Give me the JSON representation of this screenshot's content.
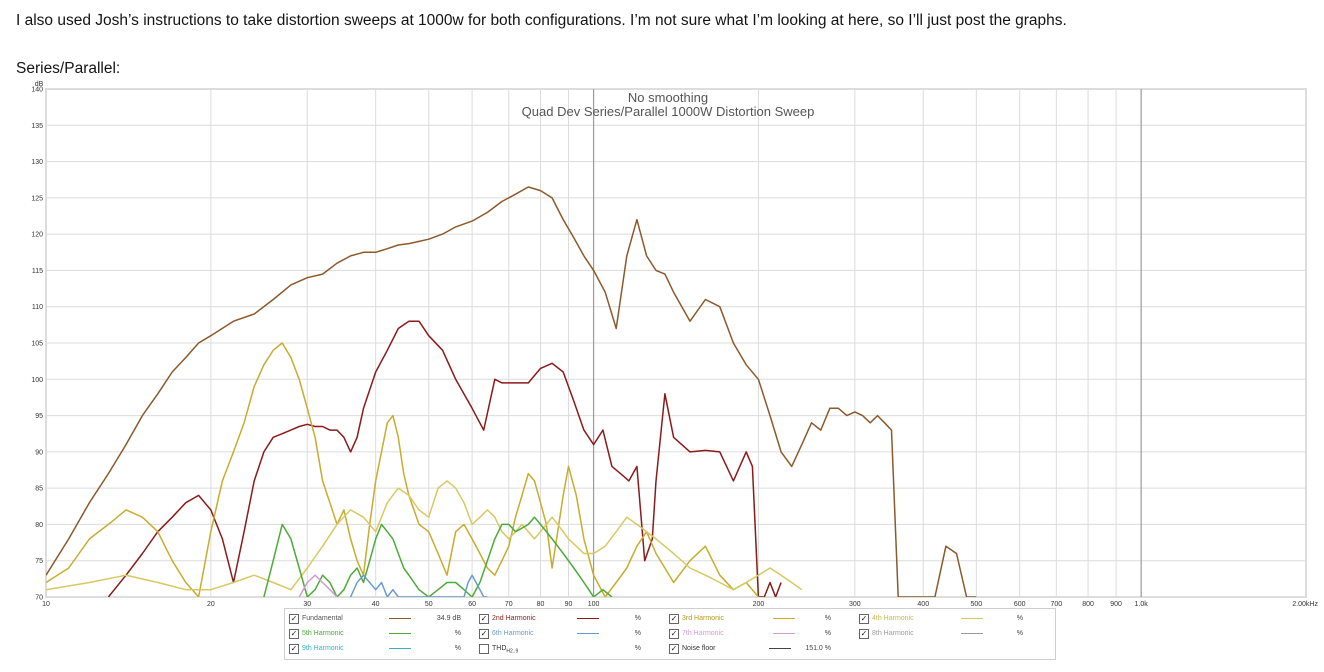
{
  "post": {
    "text": "I also used Josh’s instructions to take distortion sweeps at 1000w for both configurations. I’m not sure what I’m looking at here, so I’ll just post the graphs.",
    "section_label": "Series/Parallel:"
  },
  "chart_data": {
    "type": "line",
    "title": "Quad Dev Series/Parallel 1000W Distortion Sweep",
    "subtitle": "No smoothing",
    "ylabel": "dB",
    "xscale": "log",
    "xlim": [
      10,
      2000
    ],
    "ylim": [
      70,
      140
    ],
    "ytick_labels": [
      "70",
      "75",
      "80",
      "85",
      "90",
      "95",
      "100",
      "105",
      "110",
      "115",
      "120",
      "125",
      "130",
      "135",
      "140"
    ],
    "xtick_values": [
      10,
      20,
      30,
      40,
      50,
      60,
      70,
      80,
      90,
      100,
      200,
      300,
      400,
      500,
      600,
      700,
      800,
      900,
      1000,
      2000
    ],
    "xtick_labels": [
      "10",
      "20",
      "30",
      "40",
      "50",
      "60",
      "70",
      "80",
      "90",
      "100",
      "200",
      "300",
      "400",
      "500",
      "600",
      "700",
      "800",
      "900",
      "1.0k",
      "2.00kHz"
    ],
    "series": [
      {
        "name": "Fundamental",
        "color": "#8b5a2b",
        "x": [
          10,
          11,
          12,
          13,
          14,
          15,
          16,
          17,
          18,
          19,
          20,
          22,
          24,
          26,
          28,
          30,
          32,
          34,
          36,
          38,
          40,
          42,
          44,
          46,
          48,
          50,
          53,
          56,
          60,
          64,
          68,
          72,
          76,
          80,
          84,
          88,
          92,
          96,
          100,
          105,
          110,
          115,
          120,
          125,
          130,
          135,
          140,
          150,
          160,
          170,
          180,
          190,
          200,
          210,
          220,
          230,
          240,
          250,
          260,
          270,
          280,
          290,
          300,
          310,
          320,
          330,
          340,
          350,
          360,
          370,
          380,
          390,
          400,
          420,
          440,
          460,
          480,
          500
        ],
        "y": [
          73,
          78,
          83,
          87,
          91,
          95,
          98,
          101,
          103,
          105,
          106,
          108,
          109,
          111,
          113,
          114,
          114.5,
          116,
          117,
          117.5,
          117.5,
          118,
          118.5,
          118.7,
          119,
          119.3,
          120,
          121,
          121.8,
          123,
          124.5,
          125.5,
          126.5,
          126,
          125,
          122,
          119.5,
          117,
          115,
          112,
          107,
          117,
          122,
          117,
          115,
          114.5,
          112,
          108,
          111,
          110,
          105,
          102,
          100,
          95,
          90,
          88,
          91,
          94,
          93,
          96,
          96,
          95,
          95.5,
          95,
          94,
          95,
          94,
          93,
          70,
          70,
          70,
          70,
          70,
          70,
          77,
          76,
          70,
          70
        ]
      },
      {
        "name": "2nd Harmonic",
        "color": "#8b1a1a",
        "x": [
          13,
          14,
          15,
          16,
          17,
          18,
          19,
          20,
          21,
          22,
          23,
          24,
          25,
          26,
          27,
          28,
          29,
          30,
          31,
          32,
          33,
          34,
          35,
          36,
          37,
          38,
          40,
          42,
          44,
          46,
          48,
          50,
          53,
          56,
          60,
          63,
          66,
          68,
          70,
          73,
          76,
          80,
          84,
          88,
          92,
          96,
          100,
          104,
          108,
          112,
          116,
          120,
          124,
          128,
          130,
          135,
          140,
          150,
          160,
          170,
          180,
          190,
          195,
          200,
          205,
          210,
          215,
          220
        ],
        "y": [
          70,
          73,
          76,
          79,
          81,
          83,
          84,
          82,
          78,
          72,
          79,
          86,
          90,
          92,
          92.5,
          93,
          93.5,
          93.8,
          93.5,
          93.5,
          93,
          93,
          92,
          90,
          92,
          96,
          101,
          104,
          107,
          108,
          108,
          106,
          104,
          100,
          96,
          93,
          100,
          99.5,
          99.5,
          99.5,
          99.5,
          101.5,
          102.2,
          101,
          97,
          93,
          91,
          93,
          88,
          87,
          86,
          88,
          75,
          78,
          86,
          98,
          92,
          90,
          90.2,
          90,
          86,
          90,
          88,
          70,
          70,
          72,
          70,
          72
        ]
      },
      {
        "name": "3rd Harmonic",
        "color": "#c8ac2e",
        "x": [
          10,
          11,
          12,
          13,
          14,
          15,
          16,
          17,
          18,
          19,
          20,
          21,
          22,
          23,
          24,
          25,
          26,
          27,
          28,
          29,
          30,
          31,
          32,
          33,
          34,
          35,
          36,
          37,
          38,
          39,
          40,
          41,
          42,
          43,
          44,
          45,
          46,
          48,
          50,
          52,
          54,
          56,
          58,
          60,
          62,
          64,
          66,
          68,
          70,
          72,
          74,
          76,
          78,
          80,
          82,
          84,
          86,
          88,
          90,
          93,
          96,
          100,
          105,
          110,
          115,
          120,
          125,
          130,
          135,
          140,
          150,
          160,
          170,
          180,
          190,
          200
        ],
        "y": [
          72,
          74,
          78,
          80,
          82,
          81,
          79,
          75,
          72,
          70,
          79,
          86,
          90,
          94,
          99,
          102,
          104,
          105,
          103,
          100,
          96,
          92,
          86,
          83,
          80,
          82,
          78,
          75,
          73,
          80,
          86,
          90,
          94,
          95,
          92,
          87,
          84,
          80,
          79,
          76,
          73,
          79,
          80,
          78,
          76,
          74,
          73,
          75,
          77,
          81,
          84,
          87,
          86,
          83,
          80,
          74,
          79,
          84,
          88,
          84,
          78,
          73,
          70,
          72,
          74,
          77,
          79,
          76,
          74,
          72,
          75,
          77,
          73,
          71,
          72,
          70
        ]
      },
      {
        "name": "4th Harmonic",
        "color": "#d8c860",
        "x": [
          10,
          12,
          14,
          16,
          18,
          20,
          22,
          24,
          26,
          28,
          30,
          32,
          34,
          36,
          38,
          40,
          42,
          44,
          46,
          48,
          50,
          52,
          54,
          56,
          58,
          60,
          62,
          64,
          66,
          68,
          70,
          72,
          74,
          76,
          78,
          80,
          82,
          84,
          86,
          88,
          90,
          93,
          96,
          100,
          105,
          110,
          115,
          120,
          130,
          140,
          150,
          160,
          170,
          180,
          190,
          200,
          210,
          220,
          230,
          240
        ],
        "y": [
          71,
          72,
          73,
          72,
          71,
          71,
          72,
          73,
          72,
          71,
          74,
          77,
          80,
          82,
          81,
          79,
          83,
          85,
          84,
          82,
          81,
          85,
          86,
          85,
          83,
          80,
          81,
          82,
          81,
          79,
          78,
          79,
          80,
          79,
          78,
          79,
          80,
          81,
          80,
          79,
          78,
          77,
          76,
          76,
          77,
          79,
          81,
          80,
          78,
          76,
          74,
          73,
          72,
          71,
          72,
          73,
          74,
          73,
          72,
          71
        ]
      },
      {
        "name": "5th Harmonic",
        "color": "#4caa3a",
        "x": [
          25,
          26,
          27,
          28,
          29,
          30,
          31,
          32,
          33,
          34,
          35,
          36,
          37,
          38,
          39,
          40,
          41,
          42,
          43,
          44,
          45,
          46,
          47,
          48,
          50,
          52,
          54,
          56,
          58,
          60,
          62,
          64,
          66,
          68,
          70,
          72,
          74,
          76,
          78,
          80,
          82,
          84,
          86,
          88,
          90,
          92,
          94,
          96,
          98,
          100,
          104,
          108
        ],
        "y": [
          70,
          75,
          80,
          78,
          74,
          70,
          71,
          73,
          72,
          70,
          71,
          73,
          74,
          72,
          75,
          78,
          80,
          79,
          78,
          76,
          74,
          73,
          72,
          71,
          70,
          71,
          72,
          72,
          71,
          70,
          72,
          75,
          78,
          80,
          80,
          79,
          79.5,
          80,
          81,
          80,
          79,
          78,
          77,
          76,
          75,
          74,
          73,
          72,
          71,
          70,
          71,
          70
        ]
      },
      {
        "name": "6th Harmonic",
        "color": "#6b9acd",
        "x": [
          36,
          37,
          38,
          39,
          40,
          41,
          42,
          43,
          44,
          58,
          59,
          60,
          61,
          62,
          63,
          64
        ],
        "y": [
          70,
          72,
          73,
          72,
          71,
          72,
          70,
          71,
          70,
          70,
          72,
          73,
          72,
          71,
          70,
          70
        ]
      },
      {
        "name": "7th Harmonic",
        "color": "#d49ad4",
        "x": [
          29,
          30,
          31,
          32,
          33,
          34
        ],
        "y": [
          70,
          72,
          73,
          72,
          71,
          70
        ]
      }
    ]
  },
  "legend": {
    "fundamental": {
      "label": "Fundamental",
      "value": "34.9 dB"
    },
    "h2": {
      "label": "2nd Harmonic",
      "value": "%"
    },
    "h3": {
      "label": "3rd Harmonic",
      "value": "%"
    },
    "h4": {
      "label": "4th Harmonic",
      "value": "%"
    },
    "h5": {
      "label": "5th Harmonic",
      "value": "%"
    },
    "h6": {
      "label": "6th Harmonic",
      "value": "%"
    },
    "h7": {
      "label": "7th Harmonic",
      "value": "%"
    },
    "h8": {
      "label": "8th Harmonic",
      "value": "%"
    },
    "h9": {
      "label": "9th Harmonic",
      "value": "%"
    },
    "thd": {
      "label": "THD",
      "sub": "H2..9",
      "value": "%"
    },
    "noise": {
      "label": "Noise floor",
      "value": "151.0 %"
    },
    "colors": {
      "fundamental": "#8b5a2b",
      "h2": "#8b1a1a",
      "h3": "#c8ac2e",
      "h4": "#d8c860",
      "h5": "#4caa3a",
      "h6": "#6b9acd",
      "h7": "#d49ad4",
      "h8": "#9a9a9a",
      "h9": "#3ab0c8",
      "thd": "#666666",
      "noise": "#444444"
    }
  }
}
